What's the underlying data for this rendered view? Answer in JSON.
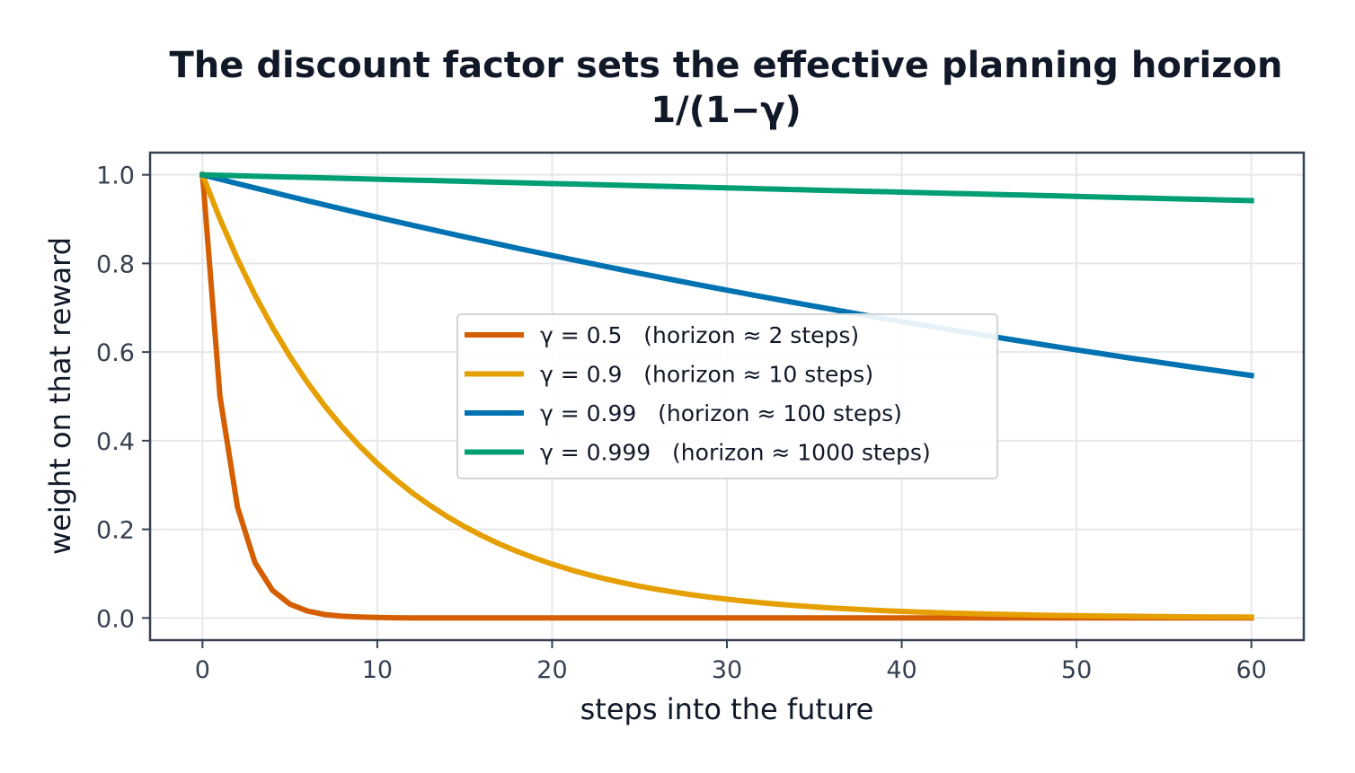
{
  "chart_data": {
    "type": "line",
    "title_line1": "The discount factor sets the effective planning horizon",
    "title_line2": "1/(1−γ)",
    "xlabel": "steps into the future",
    "ylabel": "weight on that reward",
    "xlim": [
      -3,
      63
    ],
    "ylim": [
      -0.05,
      1.05
    ],
    "xticks": [
      0,
      10,
      20,
      30,
      40,
      50,
      60
    ],
    "yticks": [
      0.0,
      0.2,
      0.4,
      0.6,
      0.8,
      1.0
    ],
    "xtick_labels": [
      "0",
      "10",
      "20",
      "30",
      "40",
      "50",
      "60"
    ],
    "ytick_labels": [
      "0.0",
      "0.2",
      "0.4",
      "0.6",
      "0.8",
      "1.0"
    ],
    "grid": true,
    "legend_position": "center",
    "x": [
      0,
      1,
      2,
      3,
      4,
      5,
      6,
      7,
      8,
      9,
      10,
      11,
      12,
      13,
      14,
      15,
      16,
      17,
      18,
      19,
      20,
      21,
      22,
      23,
      24,
      25,
      26,
      27,
      28,
      29,
      30,
      31,
      32,
      33,
      34,
      35,
      36,
      37,
      38,
      39,
      40,
      41,
      42,
      43,
      44,
      45,
      46,
      47,
      48,
      49,
      50,
      51,
      52,
      53,
      54,
      55,
      56,
      57,
      58,
      59,
      60
    ],
    "series": [
      {
        "name": "γ = 0.5   (horizon ≈ 2 steps)",
        "gamma": 0.5,
        "color": "#d55e00",
        "values": [
          1.0,
          0.5,
          0.25,
          0.125,
          0.0625,
          0.0313,
          0.0156,
          0.0078,
          0.0039,
          0.002,
          0.001,
          0.0005,
          0.0002,
          0.0001,
          0.0001,
          0.0,
          0.0,
          0.0,
          0.0,
          0.0,
          0.0,
          0.0,
          0.0,
          0.0,
          0.0,
          0.0,
          0.0,
          0.0,
          0.0,
          0.0,
          0.0,
          0.0,
          0.0,
          0.0,
          0.0,
          0.0,
          0.0,
          0.0,
          0.0,
          0.0,
          0.0,
          0.0,
          0.0,
          0.0,
          0.0,
          0.0,
          0.0,
          0.0,
          0.0,
          0.0,
          0.0,
          0.0,
          0.0,
          0.0,
          0.0,
          0.0,
          0.0,
          0.0,
          0.0,
          0.0,
          0.0
        ]
      },
      {
        "name": "γ = 0.9   (horizon ≈ 10 steps)",
        "gamma": 0.9,
        "color": "#e69f00",
        "values": [
          1.0,
          0.9,
          0.81,
          0.729,
          0.6561,
          0.5905,
          0.5314,
          0.4783,
          0.4305,
          0.3874,
          0.3487,
          0.3138,
          0.2824,
          0.2542,
          0.2288,
          0.2059,
          0.1853,
          0.1668,
          0.1501,
          0.1351,
          0.1216,
          0.1094,
          0.0985,
          0.0886,
          0.0798,
          0.0718,
          0.0646,
          0.0581,
          0.0523,
          0.0471,
          0.0424,
          0.0382,
          0.0343,
          0.0309,
          0.0278,
          0.025,
          0.0225,
          0.0203,
          0.0182,
          0.0164,
          0.0148,
          0.0133,
          0.012,
          0.0108,
          0.0097,
          0.0087,
          0.0079,
          0.0071,
          0.0064,
          0.0057,
          0.0052,
          0.0046,
          0.0042,
          0.0038,
          0.0034,
          0.003,
          0.0027,
          0.0025,
          0.0022,
          0.002,
          0.0018
        ]
      },
      {
        "name": "γ = 0.99   (horizon ≈ 100 steps)",
        "gamma": 0.99,
        "color": "#0072b2",
        "values": [
          1.0,
          0.99,
          0.9801,
          0.9703,
          0.9606,
          0.951,
          0.9415,
          0.9321,
          0.9227,
          0.9135,
          0.9044,
          0.8953,
          0.8864,
          0.8775,
          0.8687,
          0.86,
          0.8515,
          0.8429,
          0.8345,
          0.8262,
          0.8179,
          0.8097,
          0.8016,
          0.7936,
          0.7857,
          0.7778,
          0.77,
          0.7623,
          0.7547,
          0.7472,
          0.7397,
          0.7323,
          0.725,
          0.7177,
          0.7106,
          0.7034,
          0.6964,
          0.6894,
          0.6826,
          0.6757,
          0.669,
          0.6623,
          0.6557,
          0.6491,
          0.6426,
          0.6362,
          0.6298,
          0.6235,
          0.6173,
          0.6111,
          0.605,
          0.599,
          0.593,
          0.587,
          0.5812,
          0.5754,
          0.5696,
          0.5639,
          0.5583,
          0.5527,
          0.5472
        ]
      },
      {
        "name": "γ = 0.999   (horizon ≈ 1000 steps)",
        "gamma": 0.999,
        "color": "#009e73",
        "values": [
          1.0,
          0.999,
          0.998,
          0.997,
          0.996,
          0.995,
          0.994,
          0.993,
          0.992,
          0.991,
          0.99,
          0.989,
          0.9881,
          0.9871,
          0.9861,
          0.9851,
          0.9841,
          0.9831,
          0.9822,
          0.9812,
          0.9802,
          0.9792,
          0.9782,
          0.9773,
          0.9763,
          0.9753,
          0.9743,
          0.9734,
          0.9724,
          0.9714,
          0.9704,
          0.9695,
          0.9685,
          0.9675,
          0.9666,
          0.9656,
          0.9646,
          0.9637,
          0.9627,
          0.9618,
          0.9608,
          0.9598,
          0.9589,
          0.9579,
          0.957,
          0.956,
          0.955,
          0.9541,
          0.9531,
          0.9522,
          0.9512,
          0.9503,
          0.9493,
          0.9484,
          0.9474,
          0.9465,
          0.9455,
          0.9446,
          0.9437,
          0.9427,
          0.9418
        ]
      }
    ]
  }
}
